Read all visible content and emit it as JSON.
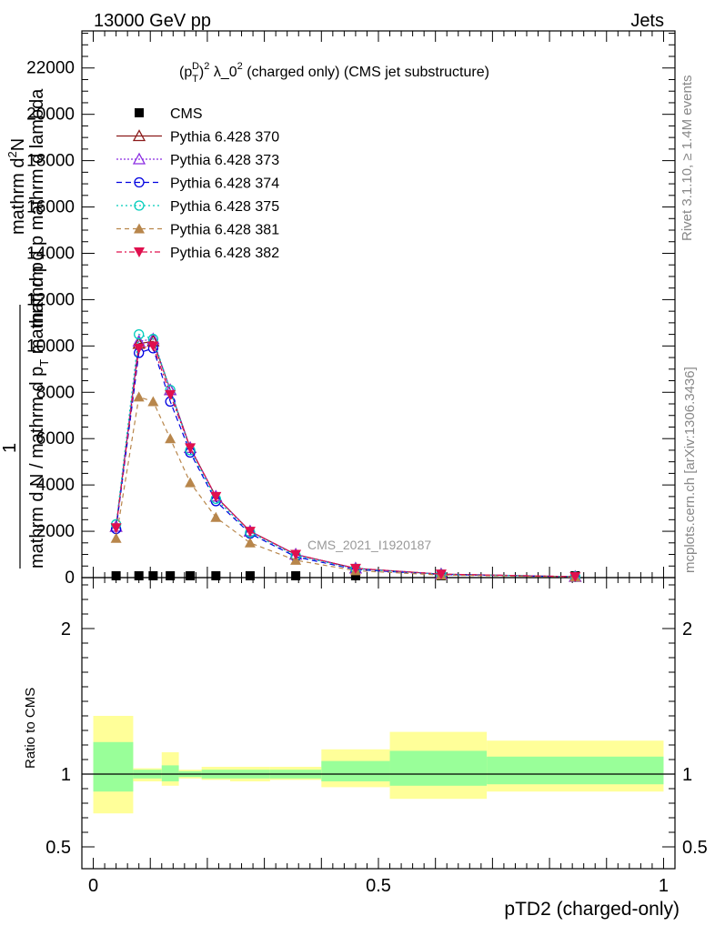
{
  "header": {
    "left": "13000 GeV pp",
    "right": "Jets"
  },
  "side_labels": {
    "rivet": "Rivet 3.1.10, ≥ 1.4M events",
    "mcplots": "mcplots.cern.ch [arXiv:1306.3436]"
  },
  "plot_title": {
    "pre": "(p",
    "sub": "T",
    "sup1": "D",
    "exp1": "2",
    "mid": " λ_0",
    "exp2": "2",
    "post": " (charged only) (CMS jet substructure)"
  },
  "watermark": "CMS_2021_I1920187",
  "ylabel_top": {
    "line1": "mathrm d",
    "line1_sup": "2",
    "line1_end": "N",
    "numerator": "1",
    "line2": "mathrm d p mathrm d lambda",
    "line3": "mathrm d N / mathrm d p",
    "line3_sub": "T",
    "line3_end": " mathrm d p"
  },
  "ylabel_bottom": "Ratio to CMS",
  "xlabel": "pTD2 (charged-only)",
  "colors": {
    "cms": "#000000",
    "p370": "#8b1a1a",
    "p373": "#8a2be2",
    "p374": "#0000e0",
    "p375": "#00ccbb",
    "p381": "#b8864b",
    "p382": "#e0104e",
    "band_outer": "#ffff99",
    "band_inner": "#99ff99"
  },
  "chart_data": {
    "type": "line",
    "x": [
      0.04,
      0.08,
      0.105,
      0.135,
      0.17,
      0.215,
      0.275,
      0.355,
      0.46,
      0.61,
      0.845
    ],
    "xlim": [
      -0.02,
      1.02
    ],
    "ylim_top": [
      0,
      23600
    ],
    "yticks_top": [
      "0",
      "2000",
      "4000",
      "6000",
      "8000",
      "10000",
      "12000",
      "14000",
      "16000",
      "18000",
      "20000",
      "22000"
    ],
    "ylim_ratio": [
      0.35,
      2.35
    ],
    "yticks_ratio": [
      "0.5",
      "1",
      "2"
    ],
    "xticks": [
      "0",
      "0.5",
      "1"
    ],
    "series": [
      {
        "name": "CMS",
        "key": "cms",
        "values": [
          0,
          0,
          0,
          0,
          0,
          0,
          0,
          0,
          0,
          0,
          0
        ]
      },
      {
        "name": "Pythia 6.428 370",
        "key": "p370",
        "values": [
          2200,
          10100,
          10200,
          8100,
          5600,
          3500,
          2000,
          1000,
          400,
          150,
          40
        ]
      },
      {
        "name": "Pythia 6.428 373",
        "key": "p373",
        "values": [
          2200,
          10200,
          10300,
          8100,
          5600,
          3500,
          2000,
          1000,
          400,
          150,
          40
        ]
      },
      {
        "name": "Pythia 6.428 374",
        "key": "p374",
        "values": [
          2100,
          9700,
          9900,
          7600,
          5400,
          3300,
          1900,
          900,
          350,
          130,
          35
        ]
      },
      {
        "name": "Pythia 6.428 375",
        "key": "p375",
        "values": [
          2300,
          10500,
          10300,
          8100,
          5500,
          3400,
          1950,
          950,
          380,
          140,
          38
        ]
      },
      {
        "name": "Pythia 6.428 381",
        "key": "p381",
        "values": [
          1700,
          7800,
          7600,
          6000,
          4100,
          2600,
          1500,
          750,
          300,
          110,
          30
        ]
      },
      {
        "name": "Pythia 6.428 382",
        "key": "p382",
        "values": [
          2150,
          9900,
          10000,
          7900,
          5600,
          3500,
          2000,
          1000,
          400,
          150,
          40
        ]
      }
    ],
    "ratio_bands": [
      {
        "x": [
          0.0,
          0.07
        ],
        "outer": [
          0.73,
          1.4
        ],
        "inner": [
          0.88,
          1.22
        ]
      },
      {
        "x": [
          0.07,
          0.12
        ],
        "outer": [
          0.95,
          1.04
        ],
        "inner": [
          0.97,
          1.03
        ]
      },
      {
        "x": [
          0.12,
          0.15
        ],
        "outer": [
          0.92,
          1.15
        ],
        "inner": [
          0.95,
          1.06
        ]
      },
      {
        "x": [
          0.15,
          0.19
        ],
        "outer": [
          0.97,
          1.03
        ],
        "inner": [
          0.98,
          1.02
        ]
      },
      {
        "x": [
          0.19,
          0.24
        ],
        "outer": [
          0.96,
          1.05
        ],
        "inner": [
          0.97,
          1.03
        ]
      },
      {
        "x": [
          0.24,
          0.31
        ],
        "outer": [
          0.95,
          1.05
        ],
        "inner": [
          0.97,
          1.03
        ]
      },
      {
        "x": [
          0.31,
          0.4
        ],
        "outer": [
          0.96,
          1.05
        ],
        "inner": [
          0.97,
          1.03
        ]
      },
      {
        "x": [
          0.4,
          0.52
        ],
        "outer": [
          0.91,
          1.17
        ],
        "inner": [
          0.95,
          1.09
        ]
      },
      {
        "x": [
          0.52,
          0.69
        ],
        "outer": [
          0.83,
          1.29
        ],
        "inner": [
          0.92,
          1.16
        ]
      },
      {
        "x": [
          0.69,
          1.0
        ],
        "outer": [
          0.88,
          1.23
        ],
        "inner": [
          0.93,
          1.12
        ]
      }
    ]
  }
}
